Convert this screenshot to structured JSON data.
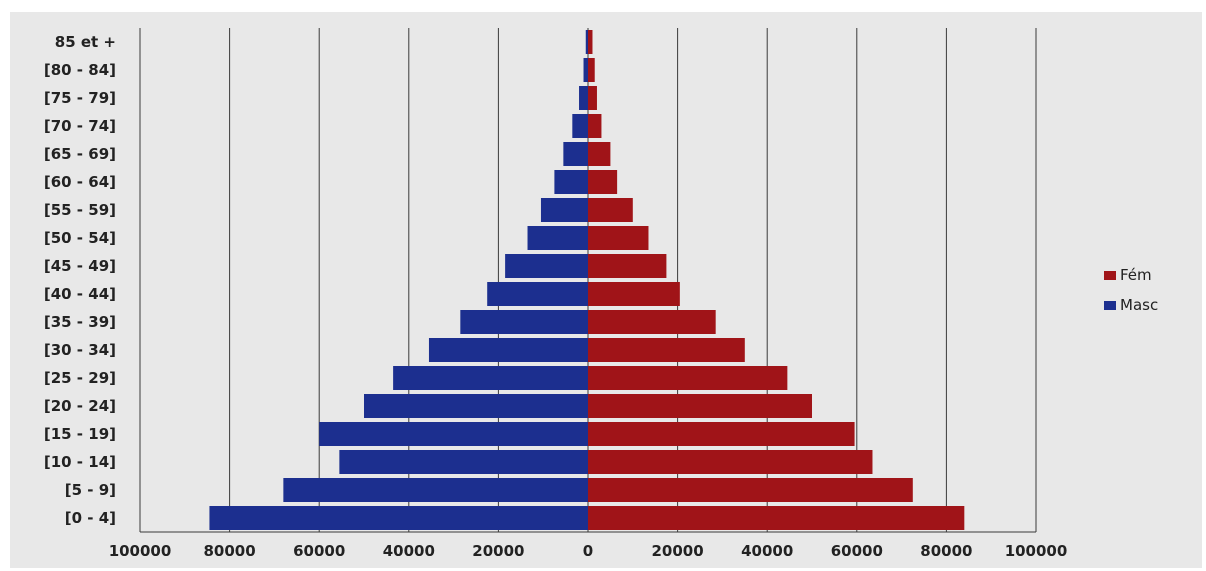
{
  "chart_data": {
    "type": "bar",
    "orientation": "horizontal",
    "subtype": "population-pyramid",
    "categories": [
      "85 et +",
      "[80 - 84]",
      "[75 - 79]",
      "[70 - 74]",
      "[65 - 69]",
      "[60 - 64]",
      "[55 - 59]",
      "[50 - 54]",
      "[45 - 49]",
      "[40 - 44]",
      "[35 - 39]",
      "[30 - 34]",
      "[25 - 29]",
      "[20 - 24]",
      "[15 - 19]",
      "[10 - 14]",
      "[5 - 9]",
      "[0 - 4]"
    ],
    "series": [
      {
        "name": "Fém",
        "color": "#a01418",
        "side": "right",
        "values": [
          1000,
          1500,
          2000,
          3000,
          5000,
          6500,
          10000,
          13500,
          17500,
          20500,
          28500,
          35000,
          44500,
          50000,
          59500,
          63500,
          72500,
          84000
        ]
      },
      {
        "name": "Masc",
        "color": "#1c2f8f",
        "side": "left",
        "values": [
          500,
          1000,
          2000,
          3500,
          5500,
          7500,
          10500,
          13500,
          18500,
          22500,
          28500,
          35500,
          43500,
          50000,
          60000,
          55500,
          68000,
          84500
        ]
      }
    ],
    "x_ticks": [
      "100000",
      "80000",
      "60000",
      "40000",
      "20000",
      "0",
      "20000",
      "40000",
      "60000",
      "80000",
      "100000"
    ],
    "xlim": [
      -100000,
      100000
    ],
    "grid": "vertical",
    "legend_position": "right",
    "title": "",
    "xlabel": "",
    "ylabel": ""
  }
}
